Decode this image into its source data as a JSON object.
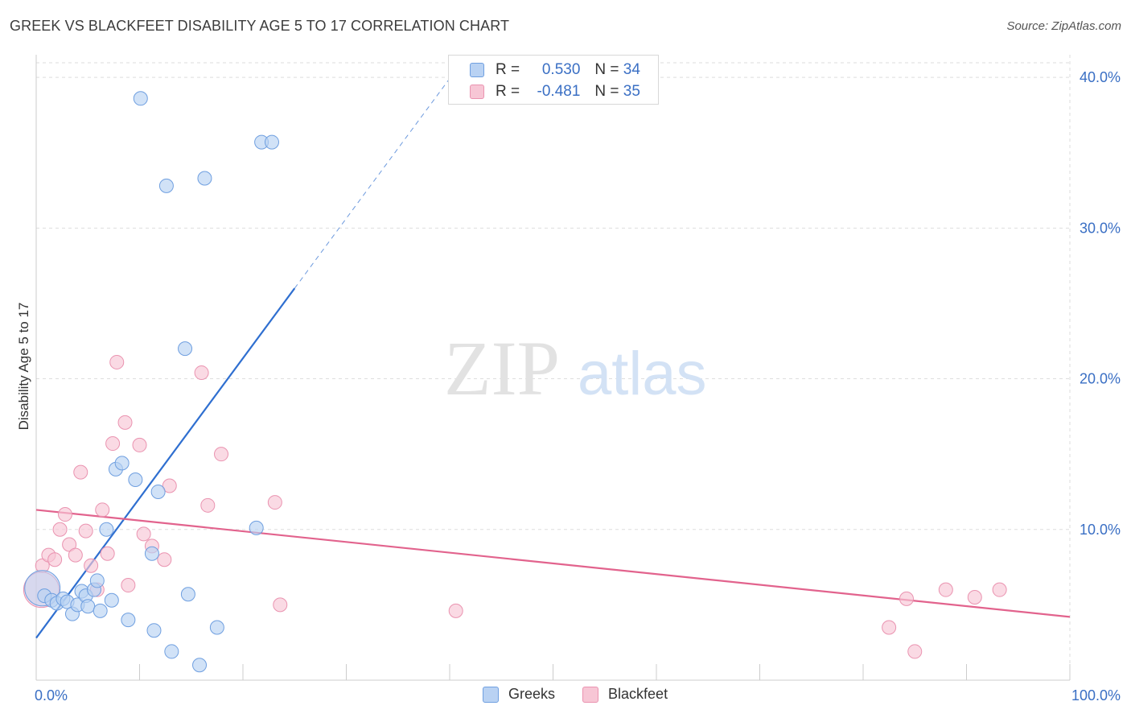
{
  "header": {
    "title": "GREEK VS BLACKFEET DISABILITY AGE 5 TO 17 CORRELATION CHART",
    "source": "Source: ZipAtlas.com"
  },
  "watermark": {
    "zip": "ZIP",
    "atlas": "atlas"
  },
  "colors": {
    "greek_fill": "#b9d2f3",
    "greek_stroke": "#6f9fe0",
    "greek_line": "#2f6fd0",
    "blackfeet_fill": "#f7c6d5",
    "blackfeet_stroke": "#ea93b0",
    "blackfeet_line": "#e2638d",
    "tick_label": "#3a6fc4",
    "grid": "#dddddd"
  },
  "legend": {
    "rows": [
      {
        "r_label": "R =",
        "r_value": "0.530",
        "n_label": "N =",
        "n_value": "34"
      },
      {
        "r_label": "R =",
        "r_value": "-0.481",
        "n_label": "N =",
        "n_value": "35"
      }
    ],
    "bottom": [
      "Greeks",
      "Blackfeet"
    ]
  },
  "chart_data": {
    "type": "scatter",
    "title": "GREEK VS BLACKFEET DISABILITY AGE 5 TO 17 CORRELATION CHART",
    "xlabel": "",
    "ylabel": "Disability Age 5 to 17",
    "xlim": [
      0,
      100
    ],
    "ylim": [
      0,
      41.5
    ],
    "x_tick_labels": [
      "0.0%",
      "100.0%"
    ],
    "y_ticks": [
      10,
      20,
      30,
      40
    ],
    "y_tick_labels": [
      "10.0%",
      "20.0%",
      "30.0%",
      "40.0%"
    ],
    "grid": true,
    "series": [
      {
        "name": "Greeks",
        "r": 0.53,
        "n": 34,
        "trend": {
          "x0": 0,
          "y0": 2.8,
          "x1_solid": 25,
          "x1_dashed": 40,
          "slope": 0.928
        },
        "points": [
          {
            "x": 0.6,
            "y": 6.1,
            "big": true
          },
          {
            "x": 0.8,
            "y": 5.6
          },
          {
            "x": 1.5,
            "y": 5.3
          },
          {
            "x": 2.0,
            "y": 5.1
          },
          {
            "x": 2.6,
            "y": 5.4
          },
          {
            "x": 3.0,
            "y": 5.2
          },
          {
            "x": 3.5,
            "y": 4.4
          },
          {
            "x": 4.0,
            "y": 5.0
          },
          {
            "x": 4.4,
            "y": 5.9
          },
          {
            "x": 4.8,
            "y": 5.6
          },
          {
            "x": 5.0,
            "y": 4.9
          },
          {
            "x": 5.6,
            "y": 6.0
          },
          {
            "x": 5.9,
            "y": 6.6
          },
          {
            "x": 6.2,
            "y": 4.6
          },
          {
            "x": 6.8,
            "y": 10.0
          },
          {
            "x": 7.3,
            "y": 5.3
          },
          {
            "x": 7.7,
            "y": 14.0
          },
          {
            "x": 8.3,
            "y": 14.4
          },
          {
            "x": 8.9,
            "y": 4.0
          },
          {
            "x": 9.6,
            "y": 13.3
          },
          {
            "x": 10.1,
            "y": 38.6
          },
          {
            "x": 11.2,
            "y": 8.4
          },
          {
            "x": 11.4,
            "y": 3.3
          },
          {
            "x": 11.8,
            "y": 12.5
          },
          {
            "x": 12.6,
            "y": 32.8
          },
          {
            "x": 13.1,
            "y": 1.9
          },
          {
            "x": 14.4,
            "y": 22.0
          },
          {
            "x": 14.7,
            "y": 5.7
          },
          {
            "x": 15.8,
            "y": 1.0
          },
          {
            "x": 16.3,
            "y": 33.3
          },
          {
            "x": 17.5,
            "y": 3.5
          },
          {
            "x": 21.3,
            "y": 10.1
          },
          {
            "x": 21.8,
            "y": 35.7
          },
          {
            "x": 22.8,
            "y": 35.7
          }
        ]
      },
      {
        "name": "Blackfeet",
        "r": -0.481,
        "n": 35,
        "trend": {
          "x0": 0,
          "y0": 11.3,
          "x1": 100,
          "y1": 4.2
        },
        "points": [
          {
            "x": 0.6,
            "y": 7.6
          },
          {
            "x": 1.2,
            "y": 8.3
          },
          {
            "x": 1.8,
            "y": 8.0
          },
          {
            "x": 2.3,
            "y": 10.0
          },
          {
            "x": 2.8,
            "y": 11.0
          },
          {
            "x": 3.2,
            "y": 9.0
          },
          {
            "x": 3.8,
            "y": 8.3
          },
          {
            "x": 4.3,
            "y": 13.8
          },
          {
            "x": 4.8,
            "y": 9.9
          },
          {
            "x": 5.3,
            "y": 7.6
          },
          {
            "x": 5.9,
            "y": 6.0
          },
          {
            "x": 6.4,
            "y": 11.3
          },
          {
            "x": 6.9,
            "y": 8.4
          },
          {
            "x": 7.4,
            "y": 15.7
          },
          {
            "x": 7.8,
            "y": 21.1
          },
          {
            "x": 8.6,
            "y": 17.1
          },
          {
            "x": 8.9,
            "y": 6.3
          },
          {
            "x": 10.0,
            "y": 15.6
          },
          {
            "x": 10.4,
            "y": 9.7
          },
          {
            "x": 11.2,
            "y": 8.9
          },
          {
            "x": 12.4,
            "y": 8.0
          },
          {
            "x": 12.9,
            "y": 12.9
          },
          {
            "x": 16.0,
            "y": 20.4
          },
          {
            "x": 16.6,
            "y": 11.6
          },
          {
            "x": 17.9,
            "y": 15.0
          },
          {
            "x": 23.1,
            "y": 11.8
          },
          {
            "x": 23.6,
            "y": 5.0
          },
          {
            "x": 40.6,
            "y": 4.6
          },
          {
            "x": 82.5,
            "y": 3.5
          },
          {
            "x": 84.2,
            "y": 5.4
          },
          {
            "x": 85.0,
            "y": 1.9
          },
          {
            "x": 88.0,
            "y": 6.0
          },
          {
            "x": 90.8,
            "y": 5.5
          },
          {
            "x": 93.2,
            "y": 6.0
          },
          {
            "x": 0.5,
            "y": 6.0,
            "big": true
          }
        ]
      }
    ]
  }
}
